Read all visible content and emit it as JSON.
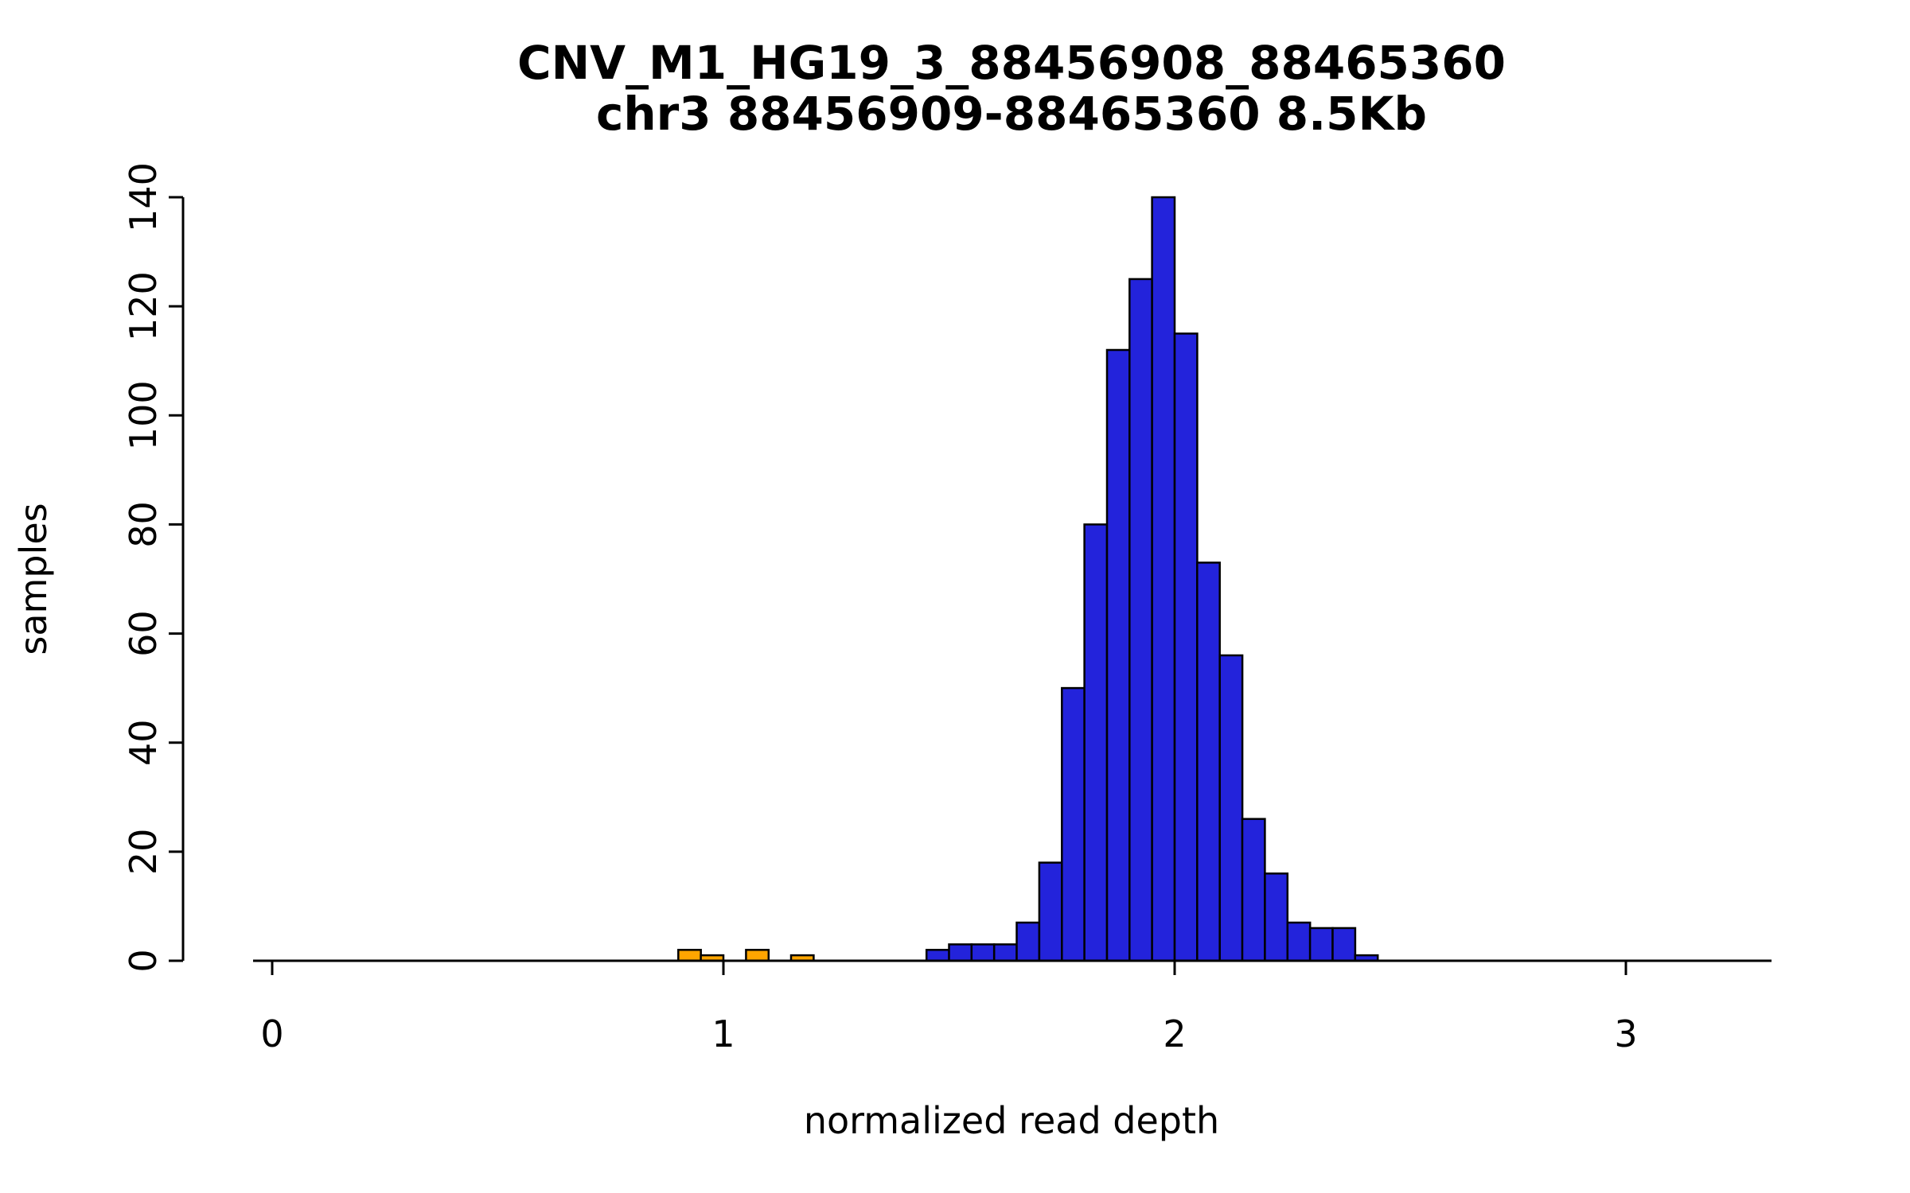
{
  "page": {
    "background": "#ffffff"
  },
  "chart": {
    "title_line1": "CNV_M1_HG19_3_88456908_88465360",
    "title_line2": "chr3 88456909-88465360 8.5Kb",
    "xlabel": "normalized read depth",
    "ylabel": "samples"
  },
  "chart_data": {
    "type": "bar",
    "subtype": "histogram",
    "title": "CNV_M1_HG19_3_88456908_88465360",
    "subtitle": "chr3 88456909-88465360 8.5Kb",
    "xlabel": "normalized read depth",
    "ylabel": "samples",
    "xlim": [
      -0.05,
      3.35
    ],
    "ylim": [
      0,
      140
    ],
    "x_ticks": [
      0,
      1,
      2,
      3
    ],
    "y_ticks": [
      0,
      20,
      40,
      60,
      80,
      100,
      120,
      140
    ],
    "grid": false,
    "legend": "none",
    "bin_width": 0.05,
    "colors": {
      "main": "#2323DB",
      "outlier": "#FFA500",
      "stroke": "#000000",
      "axis": "#000000"
    },
    "bins": [
      {
        "x0": 0.9,
        "count": 2,
        "color": "outlier"
      },
      {
        "x0": 0.95,
        "count": 1,
        "color": "outlier"
      },
      {
        "x0": 1.05,
        "count": 2,
        "color": "outlier"
      },
      {
        "x0": 1.15,
        "count": 1,
        "color": "outlier"
      },
      {
        "x0": 1.45,
        "count": 2,
        "color": "main"
      },
      {
        "x0": 1.5,
        "count": 3,
        "color": "main"
      },
      {
        "x0": 1.55,
        "count": 3,
        "color": "main"
      },
      {
        "x0": 1.6,
        "count": 3,
        "color": "main"
      },
      {
        "x0": 1.65,
        "count": 7,
        "color": "main"
      },
      {
        "x0": 1.7,
        "count": 18,
        "color": "main"
      },
      {
        "x0": 1.75,
        "count": 50,
        "color": "main"
      },
      {
        "x0": 1.8,
        "count": 80,
        "color": "main"
      },
      {
        "x0": 1.85,
        "count": 112,
        "color": "main"
      },
      {
        "x0": 1.9,
        "count": 125,
        "color": "main"
      },
      {
        "x0": 1.95,
        "count": 140,
        "color": "main"
      },
      {
        "x0": 2.0,
        "count": 115,
        "color": "main"
      },
      {
        "x0": 2.05,
        "count": 73,
        "color": "main"
      },
      {
        "x0": 2.1,
        "count": 56,
        "color": "main"
      },
      {
        "x0": 2.15,
        "count": 26,
        "color": "main"
      },
      {
        "x0": 2.2,
        "count": 16,
        "color": "main"
      },
      {
        "x0": 2.25,
        "count": 7,
        "color": "main"
      },
      {
        "x0": 2.3,
        "count": 6,
        "color": "main"
      },
      {
        "x0": 2.35,
        "count": 6,
        "color": "main"
      },
      {
        "x0": 2.4,
        "count": 1,
        "color": "main"
      }
    ]
  }
}
